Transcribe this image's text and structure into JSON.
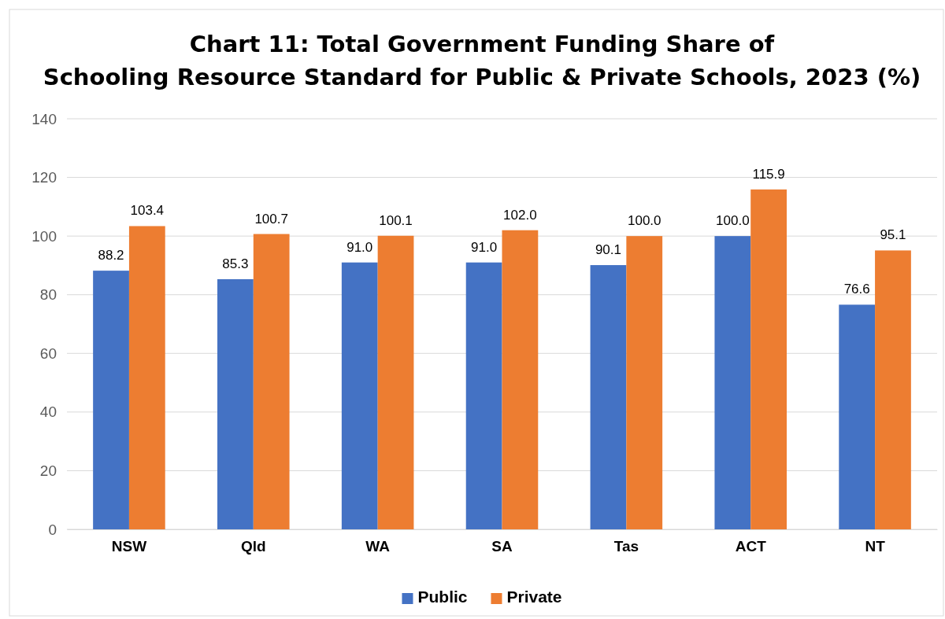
{
  "chart_data": {
    "type": "bar",
    "title": "Chart 11: Total Government Funding Share of Schooling Resource Standard for Public & Private Schools, 2023 (%)",
    "categories": [
      "NSW",
      "Qld",
      "WA",
      "SA",
      "Tas",
      "ACT",
      "NT"
    ],
    "series": [
      {
        "name": "Public",
        "color": "#4472c4",
        "values": [
          88.2,
          85.3,
          91.0,
          91.0,
          90.1,
          100.0,
          76.6
        ],
        "value_labels": [
          "88.2",
          "85.3",
          "91.0",
          "91.0",
          "90.1",
          "100.0",
          "76.6"
        ]
      },
      {
        "name": "Private",
        "color": "#ed7d31",
        "values": [
          103.4,
          100.7,
          100.1,
          102.0,
          100.0,
          115.9,
          95.1
        ],
        "value_labels": [
          "103.4",
          "100.7",
          "100.1",
          "102.0",
          "100.0",
          "115.9",
          "95.1"
        ]
      }
    ],
    "ylim": [
      0,
      140
    ],
    "yticks": [
      0,
      20,
      40,
      60,
      80,
      100,
      120,
      140
    ],
    "grid": "y",
    "legend": "bottom"
  }
}
